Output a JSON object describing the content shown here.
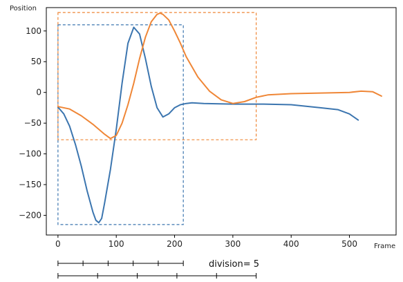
{
  "chart_data": {
    "type": "line",
    "xlabel": "Frame",
    "ylabel": "Position",
    "xlim": [
      -20,
      580
    ],
    "ylim": [
      -232,
      138
    ],
    "xticks": [
      0,
      100,
      200,
      300,
      400,
      500
    ],
    "yticks": [
      100,
      50,
      0,
      -50,
      -100,
      -150,
      -200
    ],
    "grid": false,
    "colors": {
      "blue": "#3b75af",
      "orange": "#ef8636"
    },
    "series": [
      {
        "color": "#3b75af",
        "x": [
          0,
          10,
          20,
          30,
          40,
          50,
          60,
          65,
          70,
          75,
          80,
          90,
          100,
          110,
          120,
          130,
          140,
          150,
          160,
          170,
          180,
          190,
          200,
          210,
          220,
          230,
          250,
          300,
          350,
          400,
          450,
          480,
          500,
          515
        ],
        "y": [
          -24,
          -35,
          -55,
          -85,
          -120,
          -160,
          -195,
          -208,
          -212,
          -205,
          -180,
          -125,
          -60,
          15,
          80,
          106,
          95,
          55,
          10,
          -25,
          -40,
          -35,
          -25,
          -20,
          -18,
          -17,
          -18,
          -19,
          -19,
          -20,
          -25,
          -28,
          -35,
          -45
        ]
      },
      {
        "color": "#ef8636",
        "x": [
          0,
          20,
          40,
          60,
          80,
          90,
          100,
          110,
          120,
          130,
          140,
          150,
          160,
          170,
          175,
          180,
          190,
          200,
          210,
          220,
          240,
          260,
          280,
          300,
          320,
          340,
          360,
          400,
          450,
          500,
          520,
          540,
          555
        ],
        "y": [
          -23,
          -27,
          -38,
          -52,
          -68,
          -75,
          -70,
          -50,
          -20,
          15,
          55,
          90,
          115,
          127,
          129,
          127,
          118,
          100,
          80,
          58,
          25,
          2,
          -12,
          -18,
          -15,
          -8,
          -4,
          -2,
          -1,
          0,
          2,
          1,
          -6
        ]
      }
    ],
    "annotations": [
      {
        "shape": "dashed-rectangle",
        "color": "#3b75af",
        "x_range": [
          0,
          215
        ],
        "y_range": [
          -215,
          110
        ]
      },
      {
        "shape": "dashed-rectangle",
        "color": "#ef8636",
        "x_range": [
          0,
          340
        ],
        "y_range": [
          -77,
          130
        ]
      }
    ],
    "rulers": [
      {
        "x_range": [
          0,
          215
        ],
        "divisions": 5
      },
      {
        "x_range": [
          0,
          340
        ],
        "divisions": 5
      }
    ],
    "division_label": "division= 5"
  }
}
